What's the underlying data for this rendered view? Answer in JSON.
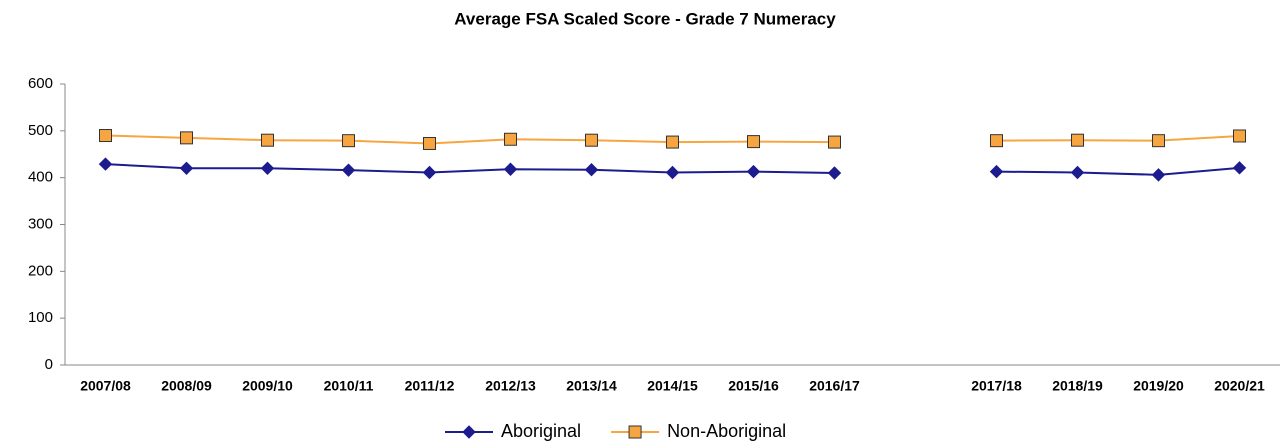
{
  "chart_data": {
    "type": "line",
    "title": "Average FSA Scaled Score - Grade 7 Numeracy",
    "categories": [
      "2007/08",
      "2008/09",
      "2009/10",
      "2010/11",
      "2011/12",
      "2012/13",
      "2013/14",
      "2014/15",
      "2015/16",
      "2016/17",
      null,
      "2017/18",
      "2018/19",
      "2019/20",
      "2020/21"
    ],
    "series": [
      {
        "name": "Aboriginal",
        "color": "#1c1c8e",
        "marker": "diamond",
        "values": [
          429,
          420,
          420,
          416,
          411,
          418,
          417,
          411,
          413,
          410,
          null,
          413,
          411,
          406,
          421
        ]
      },
      {
        "name": "Non-Aboriginal",
        "color": "#f7a541",
        "marker": "square",
        "values": [
          490,
          485,
          480,
          479,
          473,
          482,
          480,
          476,
          477,
          476,
          null,
          479,
          480,
          479,
          489
        ]
      }
    ],
    "ylim": [
      0,
      600
    ],
    "yticks": [
      0,
      100,
      200,
      300,
      400,
      500,
      600
    ],
    "grid": false,
    "legend": "bottom"
  }
}
